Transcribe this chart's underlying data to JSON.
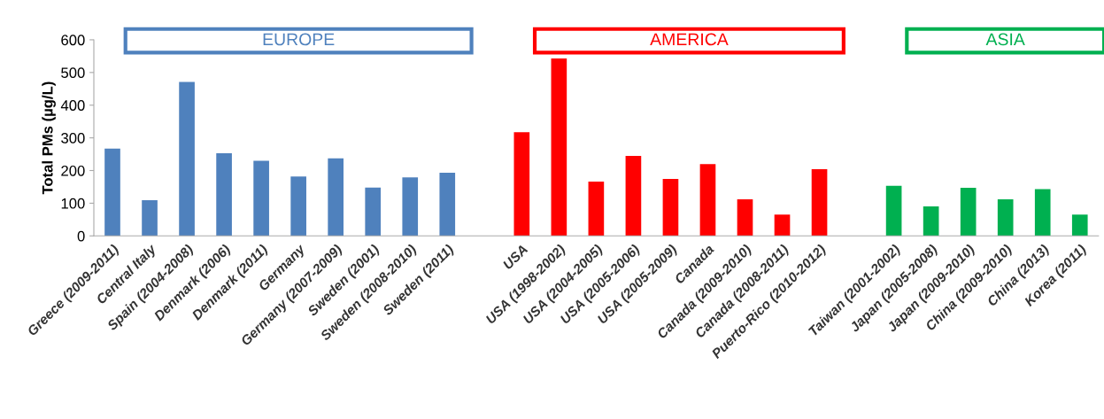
{
  "chart_data": {
    "type": "bar",
    "ylabel": "Total PMs (µg/L)",
    "categories": [
      "Greece (2009-2011)",
      "Central Italy",
      "Spain (2004-2008)",
      "Denmark (2006)",
      "Denmark (2011)",
      "Germany",
      "Germany (2007-2009)",
      "Sweden (2001)",
      "Sweden (2008-2010)",
      "Sweden (2011)",
      null,
      "USA",
      "USA (1998-2002)",
      "USA (2004-2005)",
      "USA (2005-2006)",
      "USA (2005-2009)",
      "Canada",
      "Canada (2009-2010)",
      "Canada (2008-2011)",
      "Puerto-Rico (2010-2012)",
      null,
      "Taiwan (2001-2002)",
      "Japan (2005-2008)",
      "Japan (2009-2010)",
      "China (2009-2010)",
      "China (2013)",
      "Korea (2011)"
    ],
    "values": [
      267,
      109,
      471,
      253,
      230,
      182,
      237,
      148,
      179,
      193,
      null,
      317,
      543,
      166,
      245,
      174,
      220,
      112,
      65,
      204,
      null,
      153,
      90,
      147,
      112,
      143,
      65
    ],
    "colors": [
      "#4f81bd",
      "#4f81bd",
      "#4f81bd",
      "#4f81bd",
      "#4f81bd",
      "#4f81bd",
      "#4f81bd",
      "#4f81bd",
      "#4f81bd",
      "#4f81bd",
      null,
      "#ff0000",
      "#ff0000",
      "#ff0000",
      "#ff0000",
      "#ff0000",
      "#ff0000",
      "#ff0000",
      "#ff0000",
      "#ff0000",
      null,
      "#00b050",
      "#00b050",
      "#00b050",
      "#00b050",
      "#00b050",
      "#00b050"
    ],
    "annotations": [
      "EUROPE",
      "AMERICA",
      "ASIA"
    ],
    "ylim": [
      0,
      600
    ],
    "yticks": [
      0,
      100,
      200,
      300,
      400,
      500,
      600
    ],
    "grid": false
  }
}
